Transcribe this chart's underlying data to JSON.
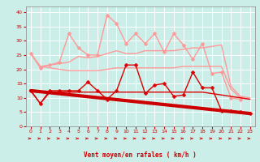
{
  "xlabel": "Vent moyen/en rafales ( km/h )",
  "bg_color": "#cceee8",
  "grid_color": "#ffffff",
  "x_ticks": [
    0,
    1,
    2,
    3,
    4,
    5,
    6,
    7,
    8,
    9,
    10,
    11,
    12,
    13,
    14,
    15,
    16,
    17,
    18,
    19,
    20,
    21,
    22,
    23
  ],
  "ylim": [
    0,
    42
  ],
  "yticks": [
    0,
    5,
    10,
    15,
    20,
    25,
    30,
    35,
    40
  ],
  "line_pink_jagged": {
    "x": [
      0,
      1,
      2,
      3,
      4,
      5,
      6,
      7,
      8,
      9,
      10,
      11,
      12,
      13,
      14,
      15,
      16,
      17,
      18,
      19,
      20,
      21,
      22
    ],
    "y": [
      25.5,
      20.5,
      21.5,
      22.5,
      32.5,
      27.5,
      25.0,
      25.0,
      39.0,
      36.0,
      29.0,
      32.5,
      29.0,
      32.5,
      26.0,
      32.5,
      28.5,
      23.5,
      29.0,
      18.5,
      19.0,
      10.0,
      9.5
    ],
    "color": "#ff9999",
    "lw": 1.0,
    "marker": "D",
    "ms": 2.5
  },
  "line_pink_smooth_upper": {
    "x": [
      0,
      1,
      2,
      3,
      4,
      5,
      6,
      7,
      8,
      9,
      10,
      11,
      12,
      13,
      14,
      15,
      16,
      17,
      18,
      19,
      20,
      21,
      22,
      23
    ],
    "y": [
      25.5,
      21.0,
      21.5,
      22.0,
      22.5,
      24.5,
      24.0,
      24.5,
      25.5,
      26.5,
      25.5,
      25.5,
      26.5,
      26.5,
      26.5,
      26.5,
      27.0,
      27.5,
      27.5,
      28.0,
      28.5,
      14.0,
      10.5,
      10.0
    ],
    "color": "#ff9999",
    "lw": 1.0,
    "marker": null
  },
  "line_pink_smooth_lower": {
    "x": [
      0,
      1,
      2,
      3,
      4,
      5,
      6,
      7,
      8,
      9,
      10,
      11,
      12,
      13,
      14,
      15,
      16,
      17,
      18,
      19,
      20,
      21,
      22,
      23
    ],
    "y": [
      25.5,
      21.0,
      20.5,
      20.0,
      19.5,
      19.5,
      19.5,
      19.5,
      20.0,
      20.5,
      20.5,
      20.5,
      20.5,
      20.5,
      20.5,
      20.5,
      21.0,
      21.0,
      21.0,
      21.0,
      21.0,
      13.0,
      10.0,
      9.5
    ],
    "color": "#ff9999",
    "lw": 1.0,
    "marker": null
  },
  "line_red_jagged": {
    "x": [
      0,
      1,
      2,
      3,
      4,
      5,
      6,
      7,
      8,
      9,
      10,
      11,
      12,
      13,
      14,
      15,
      16,
      17,
      18,
      19,
      20,
      21,
      22,
      23
    ],
    "y": [
      12.5,
      8.0,
      12.5,
      12.5,
      12.5,
      12.5,
      15.5,
      12.5,
      9.5,
      12.5,
      21.5,
      21.5,
      11.5,
      14.5,
      15.0,
      10.5,
      11.0,
      19.0,
      13.5,
      13.5,
      5.5,
      5.5,
      5.0,
      4.5
    ],
    "color": "#dd0000",
    "lw": 1.0,
    "marker": "D",
    "ms": 2.5
  },
  "line_red_smooth": {
    "x": [
      0,
      1,
      2,
      3,
      4,
      5,
      6,
      7,
      8,
      9,
      10,
      11,
      12,
      13,
      14,
      15,
      16,
      17,
      18,
      19,
      20,
      21,
      22,
      23
    ],
    "y": [
      12.5,
      8.0,
      12.0,
      12.0,
      12.0,
      12.0,
      12.0,
      12.0,
      12.0,
      12.0,
      12.0,
      12.0,
      12.0,
      12.0,
      12.0,
      12.0,
      12.0,
      12.0,
      12.0,
      11.5,
      11.0,
      10.5,
      10.0,
      9.5
    ],
    "color": "#dd0000",
    "lw": 1.0,
    "marker": null
  },
  "line_trend": {
    "x": [
      0,
      23
    ],
    "y": [
      12.5,
      4.5
    ],
    "color": "#cc0000",
    "lw": 3.0
  },
  "arrow_color": "#cc0000",
  "tick_color": "#cc0000",
  "label_color": "#cc0000",
  "spine_color": "#888888"
}
